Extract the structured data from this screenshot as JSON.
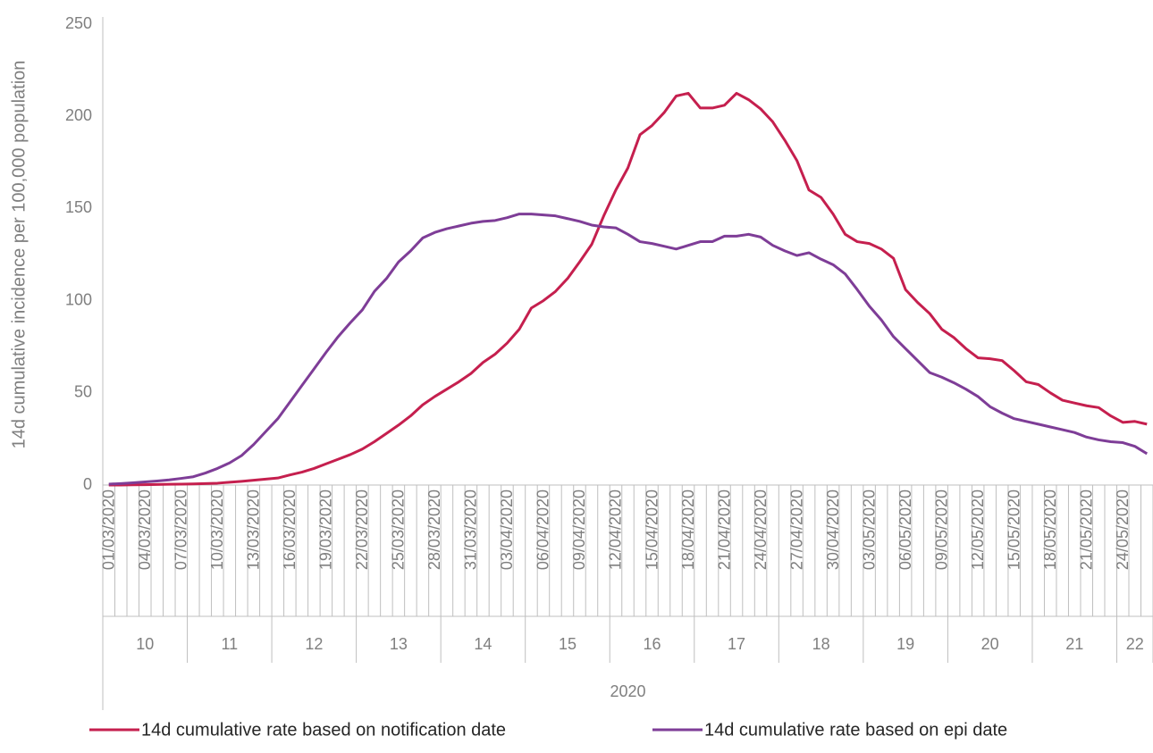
{
  "chart_data": {
    "type": "line",
    "y_axis_label": "14d cumulative incidence per 100,000 population",
    "categories": [
      "01/03/2020",
      null,
      null,
      "04/03/2020",
      null,
      null,
      "07/03/2020",
      null,
      null,
      "10/03/2020",
      null,
      null,
      "13/03/2020",
      null,
      null,
      "16/03/2020",
      null,
      null,
      "19/03/2020",
      null,
      null,
      "22/03/2020",
      null,
      null,
      "25/03/2020",
      null,
      null,
      "28/03/2020",
      null,
      null,
      "31/03/2020",
      null,
      null,
      "03/04/2020",
      null,
      null,
      "06/04/2020",
      null,
      null,
      "09/04/2020",
      null,
      null,
      "12/04/2020",
      null,
      null,
      "15/04/2020",
      null,
      null,
      "18/04/2020",
      null,
      null,
      "21/04/2020",
      null,
      null,
      "24/04/2020",
      null,
      null,
      "27/04/2020",
      null,
      null,
      "30/04/2020",
      null,
      null,
      "03/05/2020",
      null,
      null,
      "06/05/2020",
      null,
      null,
      "09/05/2020",
      null,
      null,
      "12/05/2020",
      null,
      null,
      "15/05/2020",
      null,
      null,
      "18/05/2020",
      null,
      null,
      "21/05/2020",
      null,
      null,
      "24/05/2020",
      null,
      null
    ],
    "week_labels": [
      "10",
      "11",
      "12",
      "13",
      "14",
      "15",
      "16",
      "17",
      "18",
      "19",
      "20",
      "21",
      "22"
    ],
    "year_label": "2020",
    "series": [
      {
        "name": "14d cumulative rate based on notification date",
        "color": "#c51f4e",
        "values": [
          0,
          0,
          0.1,
          0.2,
          0.3,
          0.4,
          0.5,
          0.6,
          0.8,
          1,
          1.5,
          2,
          2.6,
          3.2,
          3.8,
          5.5,
          7,
          9,
          11.5,
          14,
          16.5,
          19.5,
          23.5,
          28,
          32.5,
          37.5,
          43.5,
          48,
          52,
          56,
          60.5,
          66.5,
          71,
          77,
          84.5,
          96,
          100,
          105,
          112,
          121,
          130.5,
          146,
          160,
          172,
          190,
          195,
          202,
          211,
          212.5,
          204.5,
          204.5,
          206,
          212.5,
          209,
          204,
          197,
          187,
          176,
          160,
          156,
          147,
          136,
          132,
          131,
          128,
          123,
          106,
          99,
          93,
          84.5,
          80,
          74,
          69,
          68.5,
          67.5,
          62,
          56,
          54.5,
          50,
          46,
          44.5,
          43,
          42,
          37.5,
          34,
          34.5,
          33
        ]
      },
      {
        "name": "14d cumulative rate based on epi date",
        "color": "#7e3d97",
        "values": [
          0.5,
          0.8,
          1.2,
          1.7,
          2.2,
          2.8,
          3.6,
          4.5,
          6.5,
          9,
          12,
          16,
          22,
          29,
          36,
          45,
          54,
          63,
          72,
          80.5,
          88,
          95,
          105,
          112,
          121,
          127,
          134,
          137,
          139,
          140.5,
          142,
          143,
          143.5,
          145,
          147,
          147,
          146.5,
          146,
          144.5,
          143,
          141,
          140,
          139.5,
          136,
          132,
          131,
          129.5,
          128,
          130,
          132,
          132,
          135,
          135,
          136,
          134.5,
          130,
          127,
          124.5,
          126,
          122.5,
          119.5,
          114.5,
          106,
          97,
          89.5,
          80.5,
          74,
          67.5,
          61,
          58.5,
          55.5,
          52,
          48,
          42.5,
          39,
          36,
          34.5,
          33,
          31.5,
          30,
          28.5,
          26,
          24.5,
          23.5,
          23,
          21,
          17
        ]
      }
    ],
    "ylim": [
      0,
      250
    ],
    "yticks": [
      0,
      50,
      100,
      150,
      200,
      250
    ],
    "grid": false
  }
}
